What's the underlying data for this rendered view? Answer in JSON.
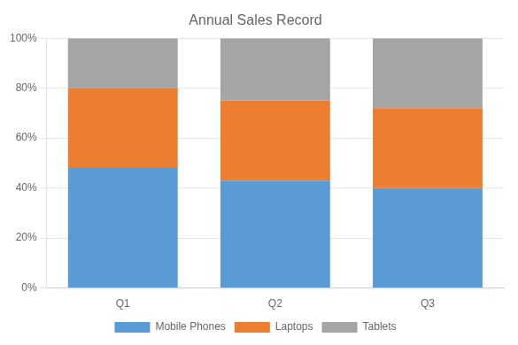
{
  "chart_data": {
    "type": "bar",
    "title": "Annual Sales Record",
    "categories": [
      "Q1",
      "Q2",
      "Q3"
    ],
    "series": [
      {
        "name": "Mobile Phones",
        "color": "#5B9BD5",
        "values": [
          0.48,
          0.43,
          0.4
        ]
      },
      {
        "name": "Laptops",
        "color": "#ED7D31",
        "values": [
          0.32,
          0.32,
          0.32
        ]
      },
      {
        "name": "Tablets",
        "color": "#A5A5A5",
        "values": [
          0.2,
          0.25,
          0.28
        ]
      }
    ],
    "stacked": true,
    "ylim": [
      0,
      1.0
    ],
    "yticks": [
      {
        "value": 0.0,
        "label": "0%"
      },
      {
        "value": 0.2,
        "label": "20%"
      },
      {
        "value": 0.4,
        "label": "40%"
      },
      {
        "value": 0.6,
        "label": "60%"
      },
      {
        "value": 0.8,
        "label": "80%"
      },
      {
        "value": 1.0,
        "label": "100%"
      }
    ],
    "grid": true,
    "legend": "bottom"
  }
}
